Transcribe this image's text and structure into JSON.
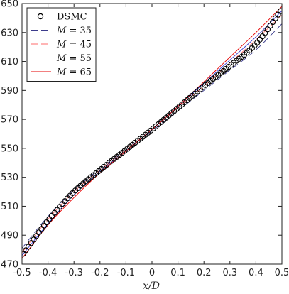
{
  "chart_data": {
    "type": "line",
    "title": "",
    "xlabel": "x/D",
    "ylabel": "",
    "xlim": [
      -0.5,
      0.5
    ],
    "ylim": [
      470,
      650
    ],
    "xticks": [
      -0.5,
      -0.4,
      -0.3,
      -0.2,
      -0.1,
      0,
      0.1,
      0.2,
      0.3,
      0.4,
      0.5
    ],
    "xtick_labels": [
      "-0.5",
      "-0.4",
      "-0.3",
      "-0.2",
      "-0.1",
      "0",
      "0.1",
      "0.2",
      "0.3",
      "0.4",
      "0.5"
    ],
    "yticks": [
      470,
      490,
      510,
      530,
      550,
      570,
      590,
      610,
      630,
      650
    ],
    "ytick_labels": [
      "470",
      "490",
      "510",
      "530",
      "550",
      "570",
      "590",
      "610",
      "630",
      "650"
    ],
    "grid": false,
    "legend_position": "top-left",
    "x": [
      -0.5,
      -0.4,
      -0.3,
      -0.2,
      -0.1,
      0,
      0.1,
      0.2,
      0.3,
      0.4,
      0.5
    ],
    "series": [
      {
        "name": "DSMC",
        "legend_label": "DSMC",
        "style": "markers",
        "marker": "circle-open",
        "color": "#000000",
        "values": [
          476,
          500,
          520,
          535,
          549,
          563,
          578,
          593,
          607,
          622,
          646
        ]
      },
      {
        "name": "M = 35",
        "legend_label": "M = 35",
        "style": "dashed",
        "color": "#3c3c8c",
        "values": [
          481,
          503,
          521,
          536,
          549,
          562,
          576,
          590,
          604,
          618,
          636
        ]
      },
      {
        "name": "M = 45",
        "legend_label": "M = 45",
        "style": "dashed",
        "color": "#ff6b6b",
        "values": [
          478,
          501,
          520,
          535,
          549,
          563,
          578,
          593,
          609,
          625,
          642
        ]
      },
      {
        "name": "M = 55",
        "legend_label": "M = 55",
        "style": "solid",
        "color": "#3a3ad0",
        "values": [
          476,
          498,
          518,
          534,
          548,
          563,
          579,
          595,
          611,
          627,
          645
        ]
      },
      {
        "name": "M = 65",
        "legend_label": "M = 65",
        "style": "solid",
        "color": "#e60000",
        "values": [
          474,
          497,
          516,
          533,
          548,
          563,
          579,
          596,
          613,
          630,
          648
        ]
      }
    ]
  }
}
